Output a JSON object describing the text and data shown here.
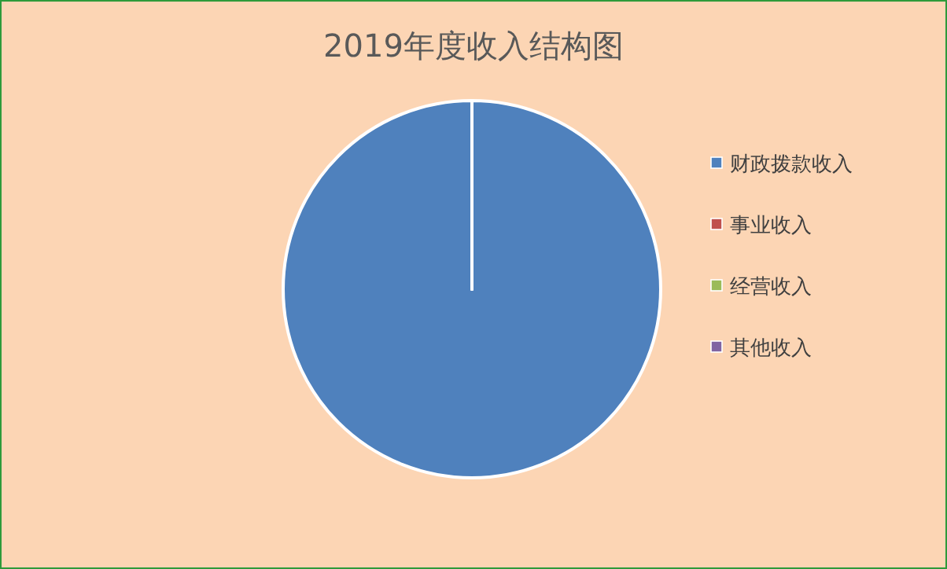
{
  "chart_data": {
    "type": "pie",
    "title": "2019年度收入结构图",
    "categories": [
      "财政拨款收入",
      "事业收入",
      "经营收入",
      "其他收入"
    ],
    "values": [
      100,
      0,
      0,
      0
    ],
    "colors": [
      "#4f81bd",
      "#c0504d",
      "#9bbb59",
      "#8064a2"
    ],
    "legend": "right"
  }
}
